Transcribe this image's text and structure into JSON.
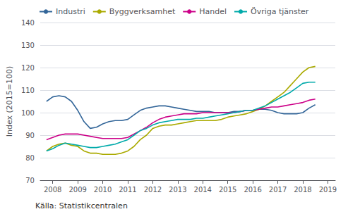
{
  "chart_data": {
    "type": "line",
    "ylabel": "Index (2015=100)",
    "source": "Källa: Statistikcentralen",
    "x": [
      2007.75,
      2008.0,
      2008.25,
      2008.5,
      2008.75,
      2009.0,
      2009.25,
      2009.5,
      2009.75,
      2010.0,
      2010.25,
      2010.5,
      2010.75,
      2011.0,
      2011.25,
      2011.5,
      2011.75,
      2012.0,
      2012.25,
      2012.5,
      2012.75,
      2013.0,
      2013.25,
      2013.5,
      2013.75,
      2014.0,
      2014.25,
      2014.5,
      2014.75,
      2015.0,
      2015.25,
      2015.5,
      2015.75,
      2016.0,
      2016.25,
      2016.5,
      2016.75,
      2017.0,
      2017.25,
      2017.5,
      2017.75,
      2018.0,
      2018.25,
      2018.5
    ],
    "series": [
      {
        "name": "Industri",
        "color": "#336699",
        "values": [
          105.0,
          107.0,
          107.5,
          107.0,
          105.0,
          101.0,
          96.0,
          93.0,
          93.5,
          95.0,
          96.0,
          96.5,
          96.5,
          97.0,
          99.0,
          101.0,
          102.0,
          102.5,
          103.0,
          103.0,
          102.5,
          102.0,
          101.5,
          101.0,
          100.5,
          100.5,
          100.5,
          100.0,
          100.0,
          100.0,
          100.5,
          100.5,
          101.0,
          101.0,
          101.5,
          101.5,
          101.0,
          100.0,
          99.5,
          99.5,
          99.5,
          100.0,
          102.0,
          103.5
        ]
      },
      {
        "name": "Byggverksamhet",
        "color": "#aaaa00",
        "values": [
          83.0,
          85.0,
          86.0,
          86.5,
          85.5,
          85.0,
          83.0,
          82.0,
          82.0,
          81.5,
          81.5,
          81.5,
          82.0,
          83.0,
          85.0,
          88.0,
          90.0,
          93.0,
          94.0,
          94.5,
          94.5,
          95.0,
          95.5,
          96.0,
          96.5,
          96.5,
          96.5,
          96.5,
          97.0,
          98.0,
          98.5,
          99.0,
          99.5,
          100.5,
          101.5,
          103.0,
          105.0,
          107.0,
          109.0,
          112.0,
          115.0,
          118.0,
          120.0,
          120.5
        ]
      },
      {
        "name": "Handel",
        "color": "#cc0088",
        "values": [
          88.0,
          89.0,
          90.0,
          90.5,
          90.5,
          90.5,
          90.0,
          89.5,
          89.0,
          88.5,
          88.5,
          88.5,
          88.5,
          89.0,
          90.5,
          92.0,
          93.5,
          95.5,
          97.0,
          98.0,
          98.5,
          99.0,
          99.5,
          99.5,
          99.5,
          100.0,
          100.0,
          100.0,
          100.0,
          100.0,
          100.0,
          100.5,
          101.0,
          101.0,
          101.5,
          102.0,
          102.5,
          102.5,
          103.0,
          103.5,
          104.0,
          104.5,
          105.5,
          106.0
        ]
      },
      {
        "name": "Övriga tjänster",
        "color": "#00aaaa",
        "values": [
          83.0,
          84.0,
          85.5,
          86.5,
          86.0,
          85.5,
          85.0,
          84.5,
          84.5,
          85.0,
          85.5,
          86.0,
          87.0,
          88.0,
          90.0,
          92.0,
          93.0,
          94.5,
          95.5,
          96.0,
          96.5,
          97.0,
          97.0,
          97.0,
          97.5,
          97.5,
          98.0,
          98.5,
          99.0,
          99.5,
          100.0,
          100.5,
          101.0,
          101.0,
          102.0,
          103.0,
          104.5,
          106.0,
          107.5,
          109.0,
          111.0,
          113.0,
          113.5,
          113.5
        ]
      }
    ],
    "xlim": [
      2007.5,
      2019.3
    ],
    "ylim": [
      70,
      140
    ],
    "xticks": [
      2008,
      2009,
      2010,
      2011,
      2012,
      2013,
      2014,
      2015,
      2016,
      2017,
      2018,
      2019
    ],
    "yticks": [
      70,
      80,
      90,
      100,
      110,
      120,
      130,
      140
    ],
    "grid": true,
    "legend": "upper left"
  }
}
